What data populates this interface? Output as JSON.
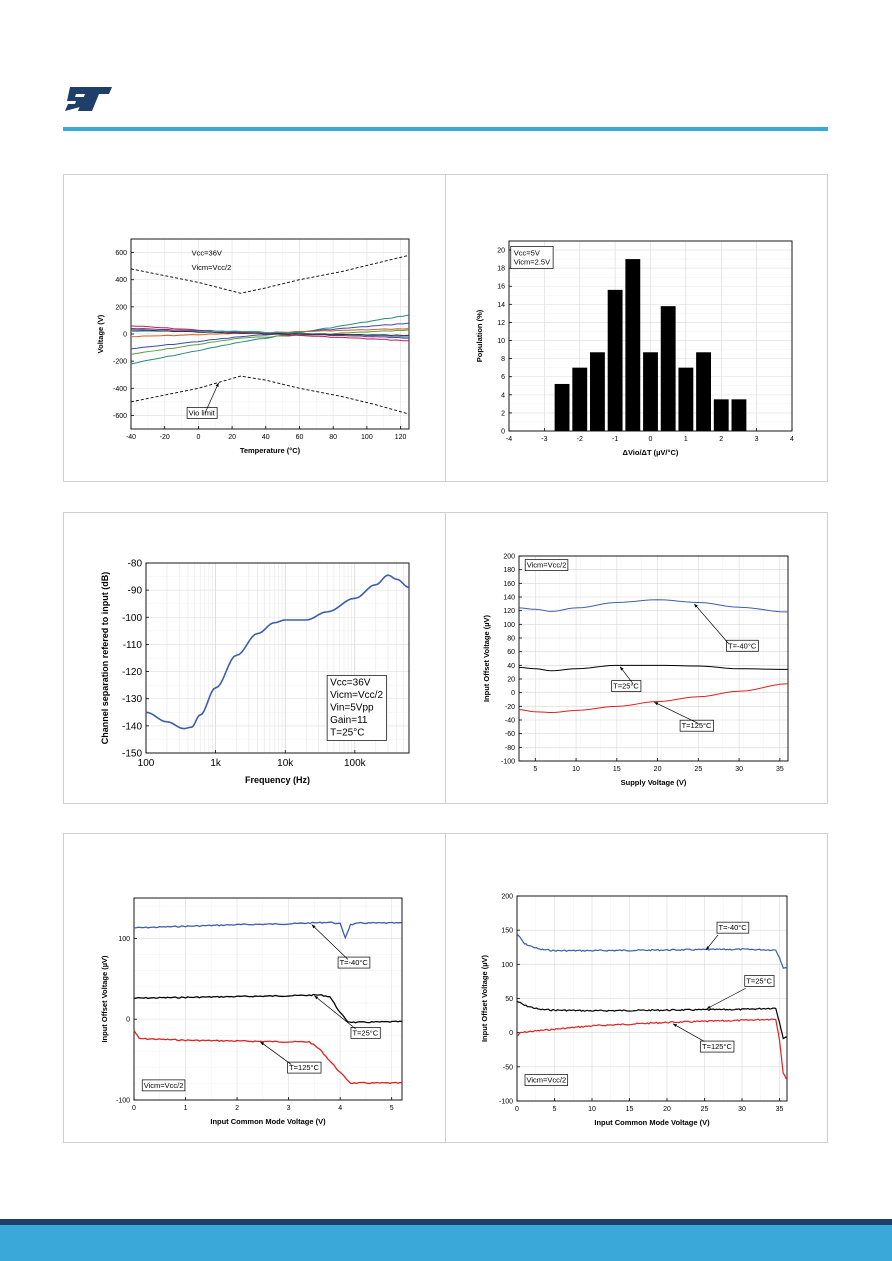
{
  "colors": {
    "brand": "#3aa8d8",
    "brand_dark": "#1f3f6b",
    "blue": "#3d5fa8",
    "red": "#e02020",
    "black": "#000000"
  },
  "chart_data": [
    {
      "id": "vio_vs_temp",
      "type": "line",
      "xlabel": "Temperature (°C)",
      "ylabel": "Voltage (V)",
      "xlim": [
        -40,
        125
      ],
      "ylim": [
        -700,
        700
      ],
      "xticks": [
        -40,
        -20,
        0,
        20,
        40,
        60,
        80,
        100,
        120
      ],
      "yticks": [
        -600,
        -400,
        -200,
        0,
        200,
        400,
        600
      ],
      "annotations": [
        "Vcc=36V",
        "Vicm=Vcc/2",
        "Vio limit"
      ],
      "limit_x": [
        -40,
        -20,
        0,
        25,
        40,
        60,
        85,
        105,
        125
      ],
      "limit_upper": [
        480,
        430,
        380,
        300,
        340,
        400,
        460,
        520,
        580
      ],
      "limit_lower": [
        -500,
        -450,
        -400,
        -310,
        -340,
        -400,
        -460,
        -520,
        -590
      ],
      "grid": true,
      "series": [
        {
          "color": "#2a8a7a",
          "values": [
            [
              -40,
              -220
            ],
            [
              25,
              -60
            ],
            [
              125,
              140
            ]
          ]
        },
        {
          "color": "#3b4bb0",
          "values": [
            [
              -40,
              -110
            ],
            [
              25,
              -20
            ],
            [
              125,
              80
            ]
          ]
        },
        {
          "color": "#5a9a40",
          "values": [
            [
              -40,
              -150
            ],
            [
              25,
              -30
            ],
            [
              125,
              30
            ]
          ]
        },
        {
          "color": "#c02050",
          "values": [
            [
              -40,
              60
            ],
            [
              25,
              10
            ],
            [
              125,
              -50
            ]
          ]
        },
        {
          "color": "#7a2a90",
          "values": [
            [
              -40,
              40
            ],
            [
              25,
              15
            ],
            [
              125,
              -30
            ]
          ]
        },
        {
          "color": "#d06020",
          "values": [
            [
              -40,
              -20
            ],
            [
              25,
              5
            ],
            [
              125,
              40
            ]
          ]
        },
        {
          "color": "#20a0c0",
          "values": [
            [
              -40,
              20
            ],
            [
              25,
              20
            ],
            [
              125,
              -20
            ]
          ]
        },
        {
          "color": "#333333",
          "values": [
            [
              -40,
              30
            ],
            [
              25,
              5
            ],
            [
              125,
              -10
            ]
          ]
        }
      ]
    },
    {
      "id": "drift_histogram",
      "type": "bar",
      "xlabel": "ΔVio/ΔT (µV/°C)",
      "ylabel": "Population (%)",
      "xlim": [
        -4,
        4
      ],
      "ylim": [
        0,
        21
      ],
      "xticks": [
        -4,
        -3,
        -2,
        -1,
        0,
        1,
        2,
        3,
        4
      ],
      "yticks": [
        0,
        2,
        4,
        6,
        8,
        10,
        12,
        14,
        16,
        18,
        20
      ],
      "annotations": [
        "Vcc=5V",
        "Vicm=2.5V"
      ],
      "bins": [
        -2.5,
        -2.0,
        -1.5,
        -1.0,
        -0.5,
        0.0,
        0.5,
        1.0,
        1.5,
        2.0,
        2.5
      ],
      "values": [
        5.2,
        7.0,
        8.7,
        15.6,
        19.0,
        8.7,
        13.8,
        7.0,
        8.7,
        3.5,
        3.5
      ],
      "grid": true
    },
    {
      "id": "channel_separation",
      "type": "line",
      "xlabel": "Frequency (Hz)",
      "ylabel": "Channel separation refered to input (dB)",
      "xscale": "log",
      "xlim": [
        100,
        600000
      ],
      "ylim": [
        -150,
        -80
      ],
      "xticks": [
        "100",
        "1k",
        "10k",
        "100k"
      ],
      "yticks": [
        -150,
        -140,
        -130,
        -120,
        -110,
        -100,
        -90,
        -80
      ],
      "annotations": [
        "Vcc=36V",
        "Vicm=Vcc/2",
        "Vin=5Vpp",
        "Gain=11",
        "T=25°C"
      ],
      "grid": true,
      "series": [
        {
          "color": "#3d5fa8",
          "values": [
            [
              100,
              -135
            ],
            [
              200,
              -138.5
            ],
            [
              350,
              -141
            ],
            [
              450,
              -140.5
            ],
            [
              600,
              -136
            ],
            [
              1000,
              -126
            ],
            [
              2000,
              -114
            ],
            [
              4000,
              -106
            ],
            [
              7000,
              -102
            ],
            [
              10000,
              -101
            ],
            [
              20000,
              -101
            ],
            [
              40000,
              -98
            ],
            [
              100000,
              -93
            ],
            [
              200000,
              -88
            ],
            [
              300000,
              -84.5
            ],
            [
              400000,
              -86
            ],
            [
              600000,
              -89
            ]
          ]
        }
      ]
    },
    {
      "id": "vio_vs_supply",
      "type": "line",
      "xlabel": "Supply Voltage (V)",
      "ylabel": "Input Offset Voltage (µV)",
      "xlim": [
        3,
        36
      ],
      "ylim": [
        -100,
        200
      ],
      "xticks": [
        5,
        10,
        15,
        20,
        25,
        30,
        35
      ],
      "yticks": [
        -100,
        -80,
        -60,
        -40,
        -20,
        0,
        20,
        40,
        60,
        80,
        100,
        120,
        140,
        160,
        180,
        200
      ],
      "annotations": [
        "Vicm=Vcc/2",
        "T=-40°C",
        "T=25°C",
        "T=125°C"
      ],
      "grid": true,
      "series": [
        {
          "name": "T=-40°C",
          "color": "#3d5fa8",
          "values": [
            [
              3,
              124
            ],
            [
              5,
              122
            ],
            [
              7,
              119
            ],
            [
              10,
              124
            ],
            [
              15,
              132
            ],
            [
              20,
              136
            ],
            [
              25,
              132
            ],
            [
              30,
              125
            ],
            [
              36,
              118
            ]
          ]
        },
        {
          "name": "T=25°C",
          "color": "#000000",
          "values": [
            [
              3,
              37
            ],
            [
              5,
              35
            ],
            [
              7,
              32
            ],
            [
              10,
              35
            ],
            [
              15,
              40
            ],
            [
              20,
              40
            ],
            [
              25,
              39
            ],
            [
              30,
              35
            ],
            [
              36,
              34
            ]
          ]
        },
        {
          "name": "T=125°C",
          "color": "#e02020",
          "values": [
            [
              3,
              -25
            ],
            [
              5,
              -28
            ],
            [
              7,
              -29
            ],
            [
              10,
              -26
            ],
            [
              15,
              -20
            ],
            [
              20,
              -13
            ],
            [
              25,
              -6
            ],
            [
              30,
              2
            ],
            [
              36,
              13
            ]
          ]
        }
      ]
    },
    {
      "id": "vio_vs_vicm_5v",
      "type": "line",
      "xlabel": "Input Common Mode Voltage (V)",
      "ylabel": "Input Offset Voltage (µV)",
      "xlim": [
        0,
        5.2
      ],
      "ylim": [
        -100,
        150
      ],
      "xticks": [
        0,
        1,
        2,
        3,
        4,
        5
      ],
      "yticks": [
        -100,
        0,
        100
      ],
      "annotations": [
        "Vicm=Vcc/2",
        "T=-40°C",
        "T=25°C",
        "T=125°C"
      ],
      "grid": true,
      "series": [
        {
          "name": "T=-40°C",
          "color": "#3d5fa8",
          "values": [
            [
              0,
              113
            ],
            [
              1,
              115
            ],
            [
              2,
              117
            ],
            [
              3,
              118
            ],
            [
              3.8,
              120
            ],
            [
              4.0,
              118
            ],
            [
              4.1,
              101
            ],
            [
              4.2,
              117
            ],
            [
              4.4,
              119
            ],
            [
              5.2,
              119
            ]
          ]
        },
        {
          "name": "T=25°C",
          "color": "#000000",
          "values": [
            [
              0,
              26
            ],
            [
              1,
              27
            ],
            [
              2,
              28
            ],
            [
              3,
              29
            ],
            [
              3.6,
              30
            ],
            [
              3.8,
              28
            ],
            [
              4.0,
              8
            ],
            [
              4.15,
              -3
            ],
            [
              4.3,
              -4
            ],
            [
              5.2,
              -3
            ]
          ]
        },
        {
          "name": "T=125°C",
          "color": "#e02020",
          "values": [
            [
              0,
              -14
            ],
            [
              0.1,
              -24
            ],
            [
              1,
              -26
            ],
            [
              2,
              -27
            ],
            [
              3,
              -28
            ],
            [
              3.4,
              -28
            ],
            [
              3.6,
              -37
            ],
            [
              4.0,
              -66
            ],
            [
              4.2,
              -79
            ],
            [
              5.2,
              -79
            ]
          ]
        }
      ]
    },
    {
      "id": "vio_vs_vicm_36v",
      "type": "line",
      "xlabel": "Input Common Mode Voltage (V)",
      "ylabel": "Input Offset Voltage (µV)",
      "xlim": [
        0,
        36
      ],
      "ylim": [
        -100,
        200
      ],
      "xticks": [
        0,
        5,
        10,
        15,
        20,
        25,
        30,
        35
      ],
      "yticks": [
        -100,
        -50,
        0,
        50,
        100,
        150,
        200
      ],
      "annotations": [
        "Vicm=Vcc/2",
        "T=-40°C",
        "T=25°C",
        "T=125°C"
      ],
      "grid": true,
      "series": [
        {
          "name": "T=-40°C",
          "color": "#3d5fa8",
          "values": [
            [
              0,
              145
            ],
            [
              1,
              130
            ],
            [
              3,
              122
            ],
            [
              5,
              120
            ],
            [
              10,
              120
            ],
            [
              20,
              121
            ],
            [
              30,
              122
            ],
            [
              34.5,
              121
            ],
            [
              35,
              110
            ],
            [
              35.5,
              95
            ],
            [
              36,
              94
            ]
          ]
        },
        {
          "name": "T=25°C",
          "color": "#000000",
          "values": [
            [
              0,
              46
            ],
            [
              1,
              40
            ],
            [
              3,
              34
            ],
            [
              5,
              33
            ],
            [
              10,
              32
            ],
            [
              20,
              33
            ],
            [
              30,
              34
            ],
            [
              34.5,
              36
            ],
            [
              35,
              15
            ],
            [
              35.5,
              -8
            ],
            [
              36,
              -7
            ]
          ]
        },
        {
          "name": "T=125°C",
          "color": "#e02020",
          "values": [
            [
              0,
              -5
            ],
            [
              0.5,
              0
            ],
            [
              2,
              2
            ],
            [
              5,
              5
            ],
            [
              10,
              10
            ],
            [
              20,
              15
            ],
            [
              30,
              18
            ],
            [
              34.5,
              20
            ],
            [
              35,
              -10
            ],
            [
              35.5,
              -60
            ],
            [
              36,
              -68
            ]
          ]
        }
      ]
    }
  ]
}
